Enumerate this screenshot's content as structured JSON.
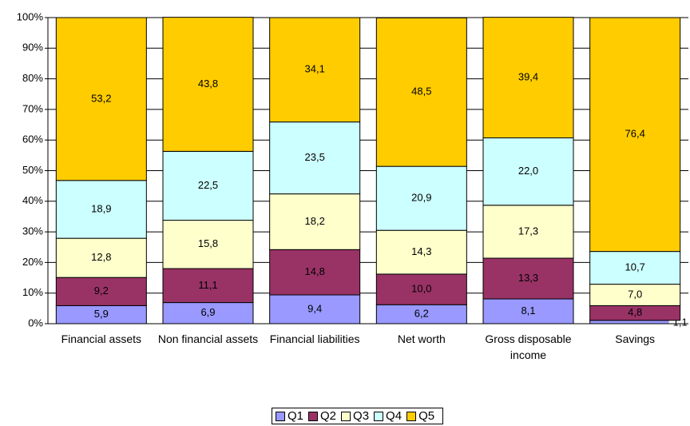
{
  "chart_data": {
    "type": "stacked-bar",
    "categories": [
      "Financial assets",
      "Non financial assets",
      "Financial liabilities",
      "Net worth",
      "Gross disposable income",
      "Savings"
    ],
    "series": [
      {
        "name": "Q1",
        "color": "#9999ff",
        "values": [
          5.9,
          6.9,
          9.4,
          6.2,
          8.1,
          1.1
        ],
        "value_labels": [
          "5,9",
          "6,9",
          "9,4",
          "6,2",
          "8,1",
          "1,1"
        ]
      },
      {
        "name": "Q2",
        "color": "#993366",
        "values": [
          9.2,
          11.1,
          14.8,
          10.0,
          13.3,
          4.8
        ],
        "value_labels": [
          "9,2",
          "11,1",
          "14,8",
          "10,0",
          "13,3",
          "4,8"
        ]
      },
      {
        "name": "Q3",
        "color": "#ffffcc",
        "values": [
          12.8,
          15.8,
          18.2,
          14.3,
          17.3,
          7.0
        ],
        "value_labels": [
          "12,8",
          "15,8",
          "18,2",
          "14,3",
          "17,3",
          "7,0"
        ]
      },
      {
        "name": "Q4",
        "color": "#ccffff",
        "values": [
          18.9,
          22.5,
          23.5,
          20.9,
          22.0,
          10.7
        ],
        "value_labels": [
          "18,9",
          "22,5",
          "23,5",
          "20,9",
          "22,0",
          "10,7"
        ]
      },
      {
        "name": "Q5",
        "color": "#ffcc00",
        "values": [
          53.2,
          43.8,
          34.1,
          48.5,
          39.4,
          76.4
        ],
        "value_labels": [
          "53,2",
          "43,8",
          "34,1",
          "48,5",
          "39,4",
          "76,4"
        ]
      }
    ],
    "ylim": [
      0,
      100
    ],
    "yticks": [
      {
        "value": 0,
        "label": "0%"
      },
      {
        "value": 10,
        "label": "10%"
      },
      {
        "value": 20,
        "label": "20%"
      },
      {
        "value": 30,
        "label": "30%"
      },
      {
        "value": 40,
        "label": "40%"
      },
      {
        "value": 50,
        "label": "50%"
      },
      {
        "value": 60,
        "label": "60%"
      },
      {
        "value": 70,
        "label": "70%"
      },
      {
        "value": 80,
        "label": "80%"
      },
      {
        "value": 90,
        "label": "90%"
      },
      {
        "value": 100,
        "label": "100%"
      }
    ],
    "grid": true,
    "legend": "bottom"
  }
}
